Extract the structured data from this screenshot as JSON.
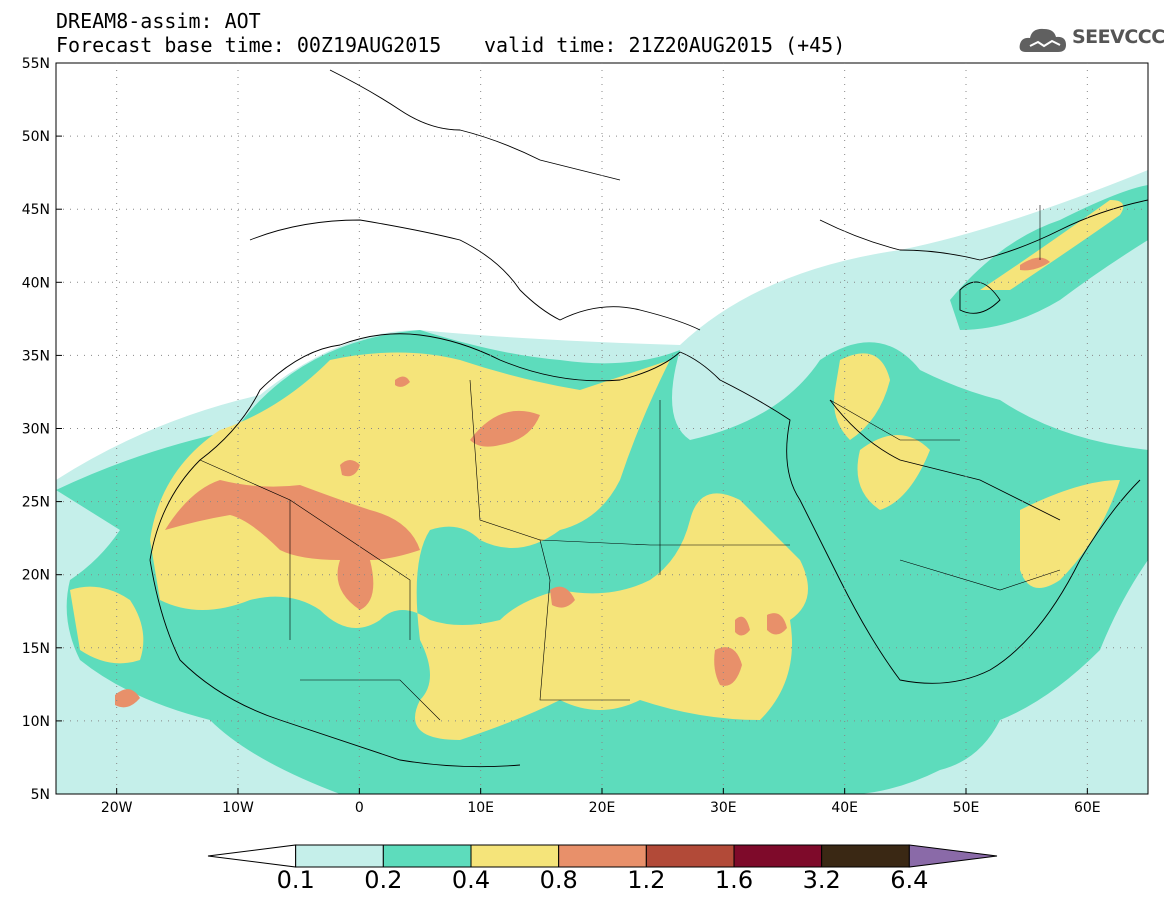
{
  "header": {
    "line1": "DREAM8-assim: AOT",
    "line2": "Forecast base time: 00Z19AUG2015",
    "line3": "valid time: 21Z20AUG2015 (+45)",
    "logo_text": "SEEVCCC"
  },
  "axes": {
    "lon_labels": [
      "20W",
      "10W",
      "0",
      "10E",
      "20E",
      "30E",
      "40E",
      "50E",
      "60E"
    ],
    "lat_labels": [
      "55N",
      "50N",
      "45N",
      "40N",
      "35N",
      "30N",
      "25N",
      "20N",
      "15N",
      "10N",
      "5N"
    ]
  },
  "colorbar": {
    "labels": [
      "0.1",
      "0.2",
      "0.4",
      "0.8",
      "1.2",
      "1.6",
      "3.2",
      "6.4"
    ],
    "colors": [
      "#ffffff",
      "#c5efea",
      "#5ddcbc",
      "#f5e47a",
      "#e8906a",
      "#b24a38",
      "#7e0a2a",
      "#3a2814",
      "#8a6aa8"
    ]
  },
  "palette": {
    "c1": "#c5efea",
    "c2": "#5ddcbc",
    "c3": "#f5e47a",
    "c4": "#e8906a",
    "c5": "#b24a38"
  }
}
